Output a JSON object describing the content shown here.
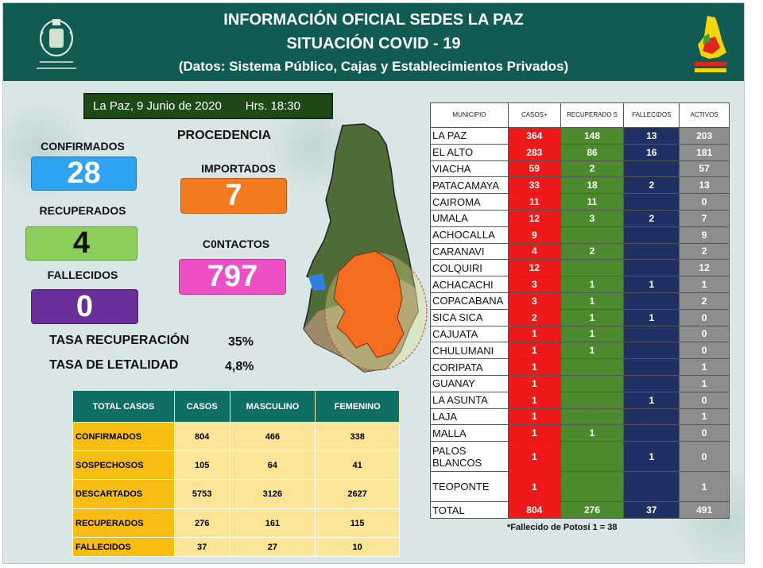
{
  "header": {
    "title_line1": "INFORMACIÓN OFICIAL SEDES LA PAZ",
    "title_line2": "SITUACIÓN  COVID - 19",
    "title_line3": "(Datos: Sistema Público, Cajas y Establecimientos Privados)"
  },
  "datebar": {
    "date": "La Paz, 9  Junio de 2020",
    "time": "Hrs. 18:30"
  },
  "stats": {
    "confirmados_label": "CONFIRMADOS",
    "confirmados_value": "28",
    "recuperados_label": "RECUPERADOS",
    "recuperados_value": "4",
    "fallecidos_label": "FALLECIDOS",
    "fallecidos_value": "0"
  },
  "procedencia": {
    "title": "PROCEDENCIA",
    "importados_label": "IMPORTADOS",
    "importados_value": "7",
    "contactos_label": "C0NTACTOS",
    "contactos_value": "797"
  },
  "rates": {
    "recuperacion_label": "TASA RECUPERACIÓN",
    "recuperacion_value": "35%",
    "letalidad_label": "TASA  DE LETALIDAD",
    "letalidad_value": "4,8%"
  },
  "summary": {
    "headers": [
      "TOTAL CASOS",
      "CASOS",
      "MASCULINO",
      "FEMENINO"
    ],
    "rows": [
      [
        "CONFIRMADOS",
        "804",
        "466",
        "338"
      ],
      [
        "SOSPECHOSOS",
        "105",
        "64",
        "41"
      ],
      [
        "DESCARTADOS",
        "5753",
        "3126",
        "2627"
      ],
      [
        "RECUPERADOS",
        "276",
        "161",
        "115"
      ],
      [
        "FALLECIDOS",
        "37",
        "27",
        "10"
      ]
    ]
  },
  "municipios": {
    "headers": [
      "MUNICIPIO",
      "CASOS+",
      "RECUPERADO S",
      "FALLECIDOS",
      "ACTIVOS"
    ],
    "rows": [
      [
        "LA PAZ",
        "364",
        "148",
        "13",
        "203"
      ],
      [
        "EL ALTO",
        "283",
        "86",
        "16",
        "181"
      ],
      [
        "VIACHA",
        "59",
        "2",
        "",
        "57"
      ],
      [
        "PATACAMAYA",
        "33",
        "18",
        "2",
        "13"
      ],
      [
        "CAIROMA",
        "11",
        "11",
        "",
        "0"
      ],
      [
        "UMALA",
        "12",
        "3",
        "2",
        "7"
      ],
      [
        "ACHOCALLA",
        "9",
        "",
        "",
        "9"
      ],
      [
        "CARANAVI",
        "4",
        "2",
        "",
        "2"
      ],
      [
        "COLQUIRI",
        "12",
        "",
        "",
        "12"
      ],
      [
        "ACHACACHI",
        "3",
        "1",
        "1",
        "1"
      ],
      [
        "COPACABANA",
        "3",
        "1",
        "",
        "2"
      ],
      [
        "SICA SICA",
        "2",
        "1",
        "1",
        "0"
      ],
      [
        "CAJUATA",
        "1",
        "1",
        "",
        "0"
      ],
      [
        "CHULUMANI",
        "1",
        "1",
        "",
        "0"
      ],
      [
        "CORIPATA",
        "1",
        "",
        "",
        "1"
      ],
      [
        "GUANAY",
        "1",
        "",
        "",
        "1"
      ],
      [
        "LA ASUNTA",
        "1",
        "",
        "1",
        "0"
      ],
      [
        "LAJA",
        "1",
        "",
        "",
        "1"
      ],
      [
        "MALLA",
        "1",
        "1",
        "",
        "0"
      ],
      [
        "PALOS BLANCOS",
        "1",
        "",
        "1",
        "0"
      ],
      [
        "TEOPONTE",
        "1",
        "",
        "",
        "1"
      ]
    ],
    "total": [
      "TOTAL",
      "804",
      "276",
      "37",
      "491"
    ]
  },
  "footnote": "*Fallecido de Potosí   1 = 38",
  "colors": {
    "header_bg": "#115c52",
    "confirmados": "#2ea3f2",
    "recuperados": "#8ccf5c",
    "fallecidos": "#6a2d9a",
    "importados": "#f47a20",
    "contactos": "#ee4fc4",
    "casos": "#ee1a1a",
    "recuperado_col": "#4b8a2d",
    "fallecidos_col": "#1e3064",
    "activos": "#8d8d8d"
  }
}
